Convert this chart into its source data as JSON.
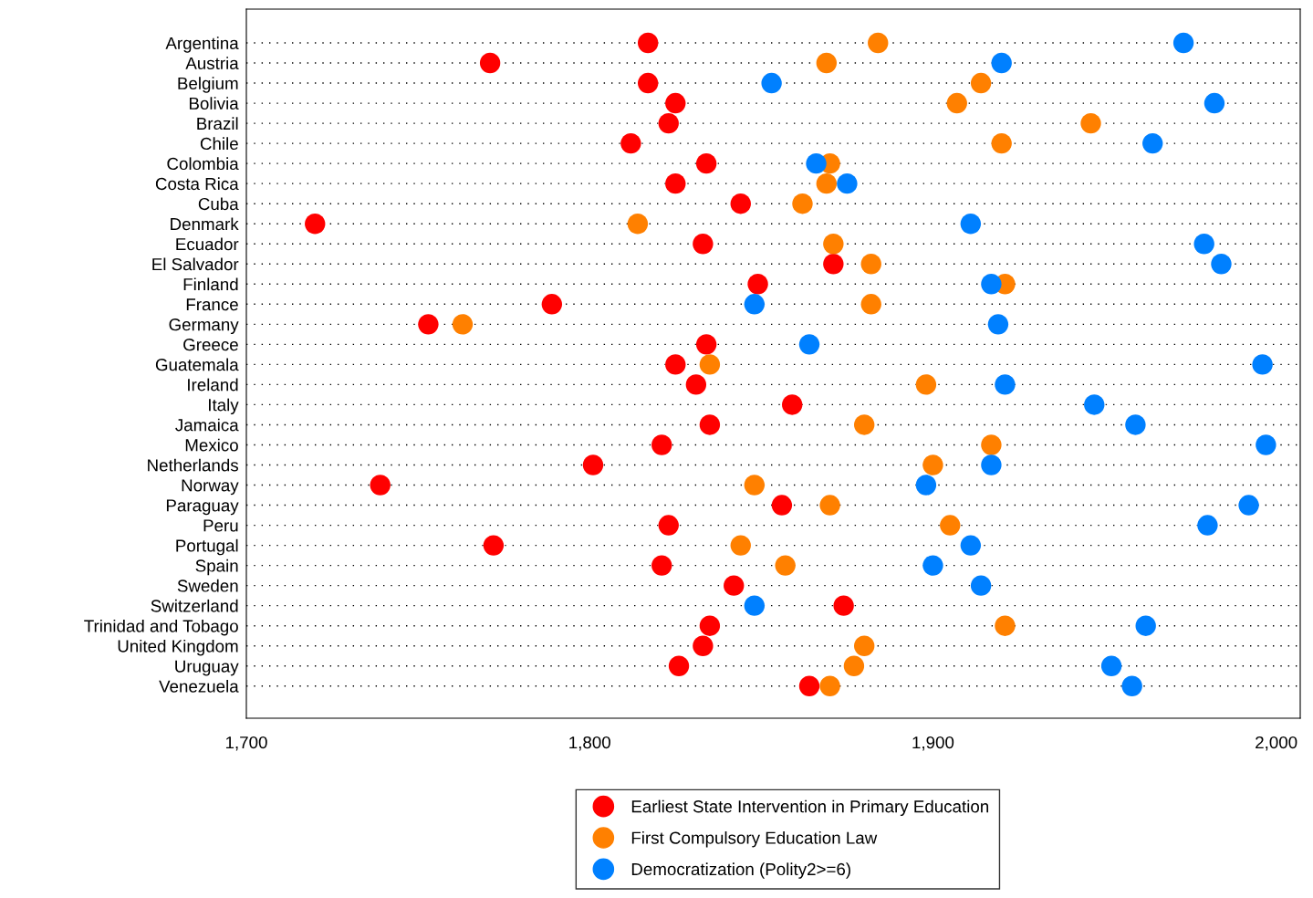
{
  "chart_data": {
    "type": "scatter",
    "categories": [
      "Argentina",
      "Austria",
      "Belgium",
      "Bolivia",
      "Brazil",
      "Chile",
      "Colombia",
      "Costa Rica",
      "Cuba",
      "Denmark",
      "Ecuador",
      "El Salvador",
      "Finland",
      "France",
      "Germany",
      "Greece",
      "Guatemala",
      "Ireland",
      "Italy",
      "Jamaica",
      "Mexico",
      "Netherlands",
      "Norway",
      "Paraguay",
      "Peru",
      "Portugal",
      "Spain",
      "Sweden",
      "Switzerland",
      "Trinidad and Tobago",
      "United Kingdom",
      "Uruguay",
      "Venezuela"
    ],
    "orientation": "horizontal",
    "series": [
      {
        "name": "Earliest State Intervention in Primary Education",
        "color": "#ff0000",
        "values": [
          1817,
          1771,
          1817,
          1825,
          1823,
          1812,
          1834,
          1825,
          1844,
          1720,
          1833,
          1871,
          1849,
          1789,
          1753,
          1834,
          1825,
          1831,
          1859,
          1835,
          1821,
          1801,
          1739,
          1856,
          1823,
          1772,
          1821,
          1842,
          1874,
          1835,
          1833,
          1826,
          1864
        ]
      },
      {
        "name": "First Compulsory Education Law",
        "color": "#ff8000",
        "values": [
          1884,
          1869,
          1914,
          1907,
          1946,
          1920,
          1870,
          1869,
          1862,
          1814,
          1871,
          1882,
          1921,
          1882,
          1763,
          null,
          1835,
          1898,
          null,
          1880,
          1917,
          1900,
          1848,
          1870,
          1905,
          1844,
          1857,
          null,
          null,
          1921,
          1880,
          1877,
          1870
        ]
      },
      {
        "name": "Democratization (Polity2>=6)",
        "color": "#0080ff",
        "values": [
          1973,
          1920,
          1853,
          1982,
          null,
          1964,
          1866,
          1875,
          null,
          1911,
          1979,
          1984,
          1917,
          1848,
          1919,
          1864,
          1996,
          1921,
          1947,
          1959,
          1997,
          1917,
          1898,
          1992,
          1980,
          1911,
          1900,
          1914,
          1848,
          1962,
          null,
          1952,
          1958
        ]
      }
    ],
    "xlim": [
      1700,
      2007
    ],
    "xticks": [
      {
        "value": 1700,
        "label": "1,700"
      },
      {
        "value": 1800,
        "label": "1,800"
      },
      {
        "value": 1900,
        "label": "1,900"
      },
      {
        "value": 2000,
        "label": "2,000"
      }
    ],
    "grid": "y",
    "legend": "bottom",
    "marker": "circle"
  }
}
